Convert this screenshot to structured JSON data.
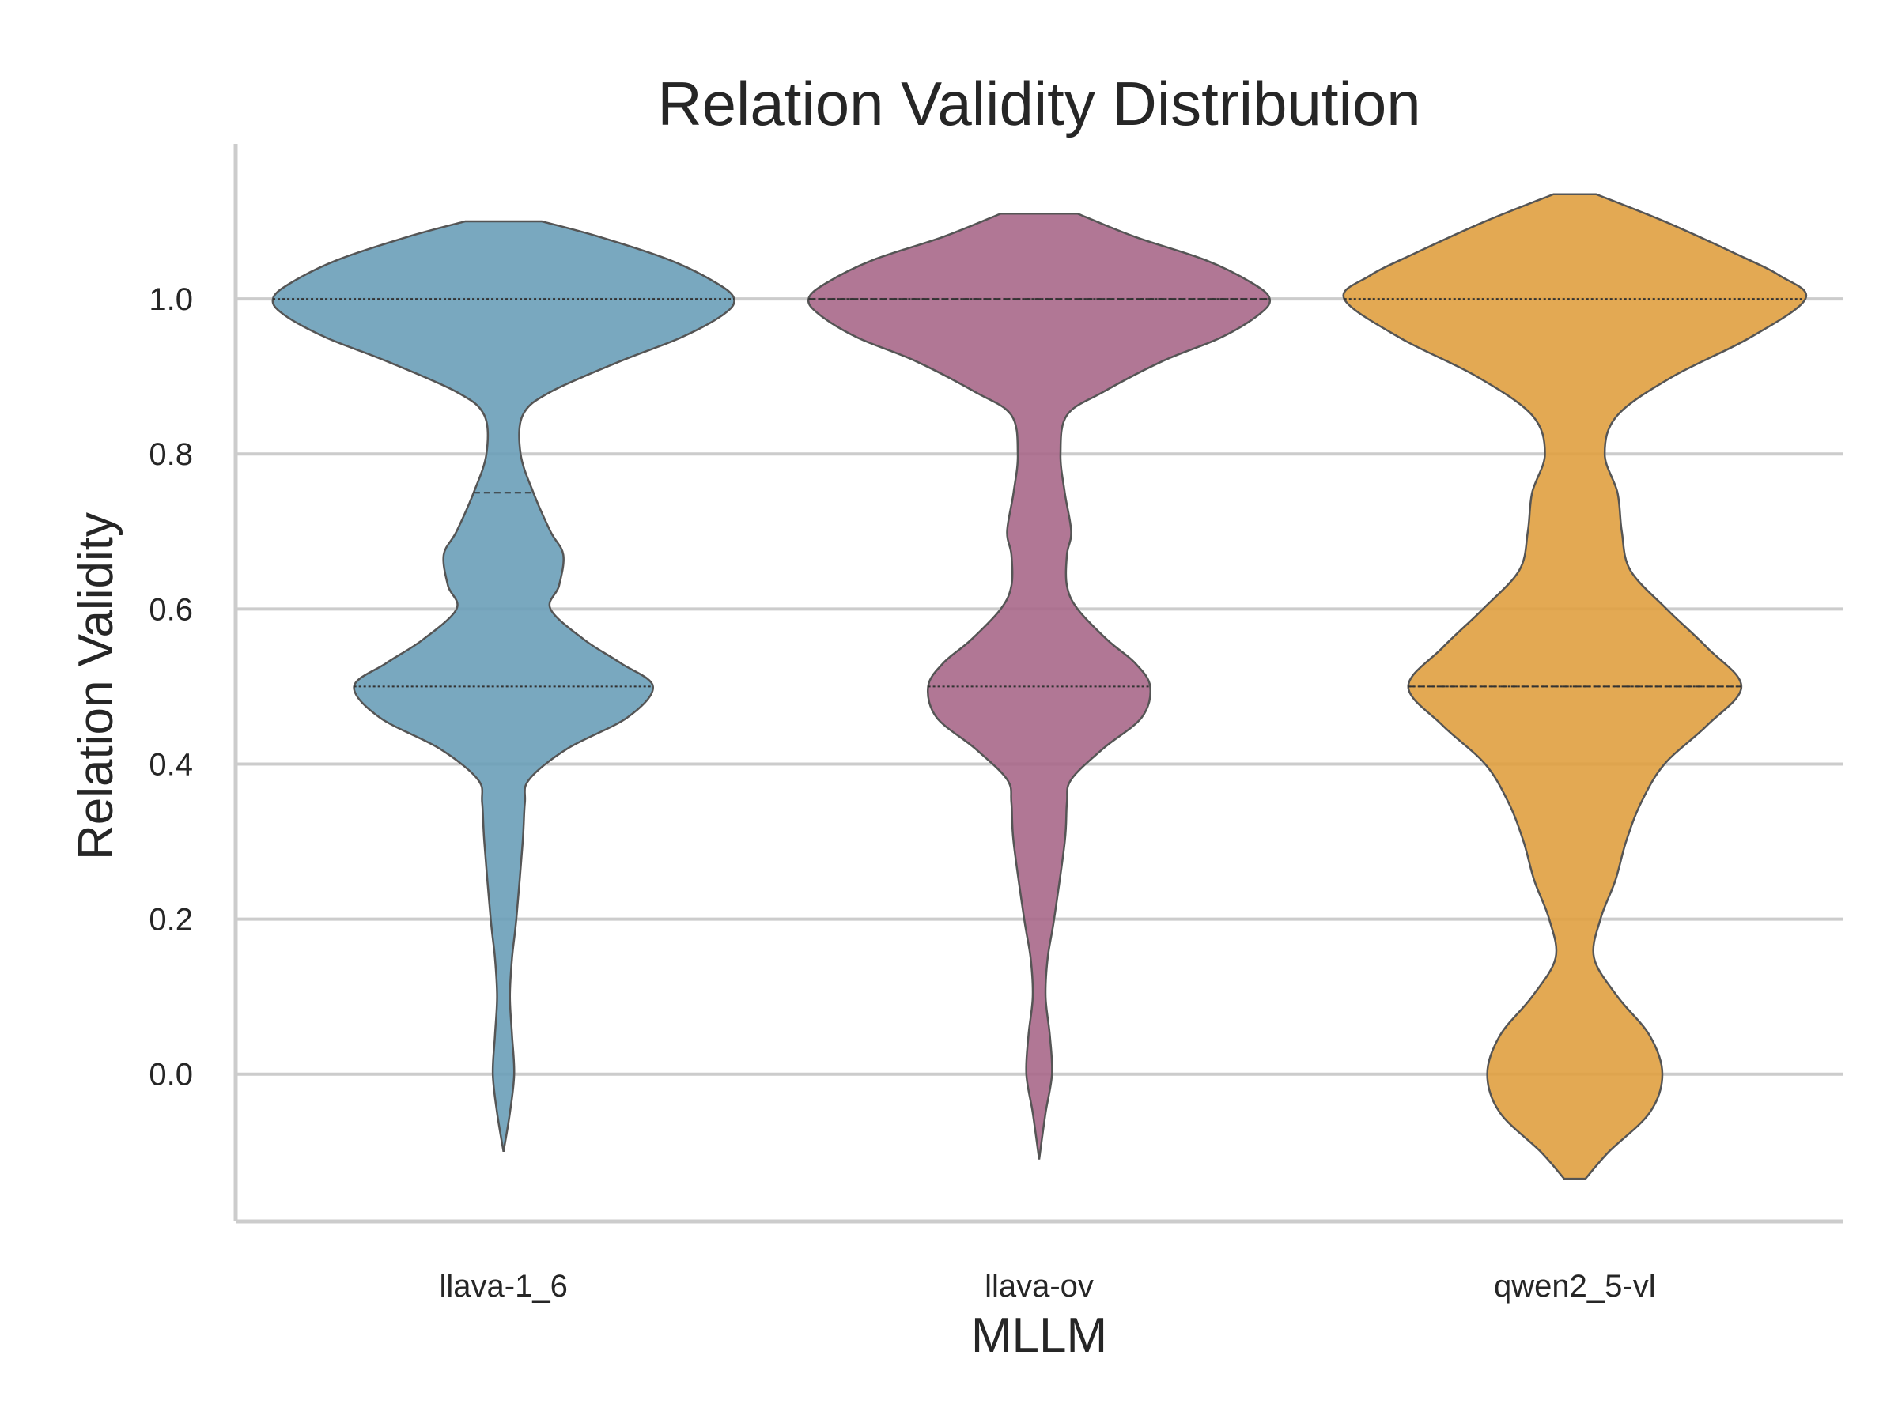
{
  "chart_data": {
    "type": "violin",
    "title": "Relation Validity Distribution",
    "xlabel": "MLLM",
    "ylabel": "Relation Validity",
    "categories": [
      "llava-1_6",
      "llava-ov",
      "qwen2_5-vl"
    ],
    "ylim": [
      -0.19,
      1.2
    ],
    "yticks": [
      "0.0",
      "0.2",
      "0.4",
      "0.6",
      "0.8",
      "1.0"
    ],
    "grid": "horizontal",
    "colors": [
      "#6a9fb8",
      "#a8688a",
      "#e0a040"
    ],
    "series": [
      {
        "category": "llava-1_6",
        "color": "#6a9fb8",
        "range": [
          -0.1,
          1.1
        ],
        "quartiles": [
          0.5,
          0.75,
          1.0
        ],
        "density": [
          [
            -0.1,
            0.0
          ],
          [
            -0.05,
            0.03
          ],
          [
            0.0,
            0.05
          ],
          [
            0.05,
            0.04
          ],
          [
            0.1,
            0.03
          ],
          [
            0.15,
            0.04
          ],
          [
            0.2,
            0.06
          ],
          [
            0.3,
            0.09
          ],
          [
            0.35,
            0.1
          ],
          [
            0.38,
            0.12
          ],
          [
            0.42,
            0.3
          ],
          [
            0.46,
            0.58
          ],
          [
            0.5,
            0.7
          ],
          [
            0.53,
            0.55
          ],
          [
            0.56,
            0.38
          ],
          [
            0.6,
            0.22
          ],
          [
            0.63,
            0.26
          ],
          [
            0.67,
            0.28
          ],
          [
            0.7,
            0.22
          ],
          [
            0.75,
            0.14
          ],
          [
            0.8,
            0.08
          ],
          [
            0.85,
            0.09
          ],
          [
            0.88,
            0.22
          ],
          [
            0.92,
            0.55
          ],
          [
            0.95,
            0.83
          ],
          [
            0.98,
            1.03
          ],
          [
            1.0,
            1.08
          ],
          [
            1.02,
            1.0
          ],
          [
            1.05,
            0.78
          ],
          [
            1.08,
            0.45
          ],
          [
            1.1,
            0.18
          ]
        ]
      },
      {
        "category": "llava-ov",
        "color": "#a8688a",
        "range": [
          -0.11,
          1.11
        ],
        "quartiles": [
          0.5,
          1.0,
          1.0
        ],
        "density": [
          [
            -0.11,
            0.0
          ],
          [
            -0.05,
            0.03
          ],
          [
            0.0,
            0.06
          ],
          [
            0.05,
            0.05
          ],
          [
            0.1,
            0.03
          ],
          [
            0.15,
            0.04
          ],
          [
            0.2,
            0.07
          ],
          [
            0.3,
            0.12
          ],
          [
            0.35,
            0.13
          ],
          [
            0.38,
            0.15
          ],
          [
            0.42,
            0.3
          ],
          [
            0.46,
            0.48
          ],
          [
            0.5,
            0.52
          ],
          [
            0.53,
            0.45
          ],
          [
            0.56,
            0.32
          ],
          [
            0.6,
            0.18
          ],
          [
            0.63,
            0.13
          ],
          [
            0.67,
            0.13
          ],
          [
            0.7,
            0.15
          ],
          [
            0.75,
            0.12
          ],
          [
            0.8,
            0.1
          ],
          [
            0.85,
            0.13
          ],
          [
            0.88,
            0.3
          ],
          [
            0.92,
            0.58
          ],
          [
            0.95,
            0.85
          ],
          [
            0.98,
            1.03
          ],
          [
            1.0,
            1.08
          ],
          [
            1.02,
            1.0
          ],
          [
            1.05,
            0.78
          ],
          [
            1.08,
            0.45
          ],
          [
            1.11,
            0.18
          ]
        ]
      },
      {
        "category": "qwen2_5-vl",
        "color": "#e0a040",
        "range": [
          -0.135,
          1.135
        ],
        "quartiles": [
          0.5,
          0.5,
          1.0
        ],
        "density": [
          [
            -0.135,
            0.05
          ],
          [
            -0.1,
            0.16
          ],
          [
            -0.05,
            0.35
          ],
          [
            0.0,
            0.41
          ],
          [
            0.05,
            0.35
          ],
          [
            0.1,
            0.2
          ],
          [
            0.15,
            0.09
          ],
          [
            0.2,
            0.12
          ],
          [
            0.25,
            0.19
          ],
          [
            0.3,
            0.24
          ],
          [
            0.35,
            0.31
          ],
          [
            0.4,
            0.42
          ],
          [
            0.45,
            0.62
          ],
          [
            0.5,
            0.78
          ],
          [
            0.55,
            0.62
          ],
          [
            0.6,
            0.43
          ],
          [
            0.65,
            0.26
          ],
          [
            0.7,
            0.22
          ],
          [
            0.75,
            0.2
          ],
          [
            0.8,
            0.14
          ],
          [
            0.85,
            0.2
          ],
          [
            0.9,
            0.46
          ],
          [
            0.95,
            0.82
          ],
          [
            1.0,
            1.08
          ],
          [
            1.03,
            0.96
          ],
          [
            1.06,
            0.74
          ],
          [
            1.1,
            0.42
          ],
          [
            1.135,
            0.1
          ]
        ]
      }
    ]
  }
}
